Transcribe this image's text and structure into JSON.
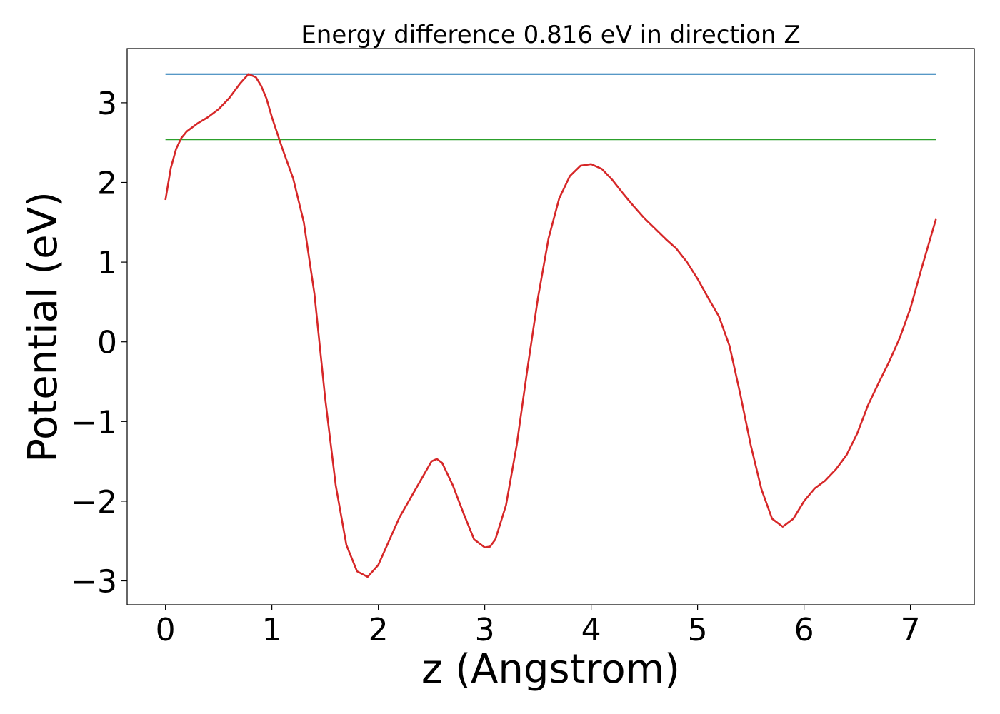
{
  "chart_data": {
    "type": "line",
    "title": "Energy difference 0.816 eV in direction Z",
    "xlabel": "z (Angstrom)",
    "ylabel": "Potential (eV)",
    "xlim": [
      -0.36,
      7.6
    ],
    "ylim": [
      -3.3,
      3.68
    ],
    "xticks": [
      0,
      1,
      2,
      3,
      4,
      5,
      6,
      7
    ],
    "yticks": [
      -3,
      -2,
      -1,
      0,
      1,
      2,
      3
    ],
    "ytick_labels": [
      "−3",
      "−2",
      "−1",
      "0",
      "1",
      "2",
      "3"
    ],
    "grid": false,
    "series": [
      {
        "color": "#1f77b4",
        "x": [
          0,
          7.24
        ],
        "y": [
          3.36,
          3.36
        ]
      },
      {
        "color": "#2ca02c",
        "x": [
          0,
          7.24
        ],
        "y": [
          2.54,
          2.54
        ]
      },
      {
        "color": "#d62728",
        "x": [
          0,
          0.05,
          0.1,
          0.15,
          0.2,
          0.3,
          0.4,
          0.5,
          0.6,
          0.7,
          0.78,
          0.85,
          0.9,
          0.95,
          1.0,
          1.05,
          1.1,
          1.2,
          1.3,
          1.4,
          1.5,
          1.6,
          1.7,
          1.8,
          1.9,
          2.0,
          2.1,
          2.2,
          2.35,
          2.5,
          2.55,
          2.6,
          2.7,
          2.8,
          2.9,
          3.0,
          3.05,
          3.1,
          3.2,
          3.3,
          3.4,
          3.5,
          3.6,
          3.7,
          3.8,
          3.9,
          4.0,
          4.1,
          4.2,
          4.3,
          4.4,
          4.5,
          4.6,
          4.7,
          4.8,
          4.9,
          5.0,
          5.1,
          5.2,
          5.3,
          5.4,
          5.5,
          5.6,
          5.7,
          5.8,
          5.9,
          6.0,
          6.1,
          6.2,
          6.3,
          6.4,
          6.5,
          6.6,
          6.7,
          6.8,
          6.9,
          7.0,
          7.1,
          7.24
        ],
        "y": [
          1.78,
          2.18,
          2.42,
          2.56,
          2.64,
          2.74,
          2.82,
          2.92,
          3.06,
          3.24,
          3.36,
          3.32,
          3.21,
          3.05,
          2.82,
          2.62,
          2.42,
          2.05,
          1.5,
          0.6,
          -0.7,
          -1.8,
          -2.55,
          -2.88,
          -2.95,
          -2.8,
          -2.5,
          -2.2,
          -1.85,
          -1.5,
          -1.47,
          -1.52,
          -1.8,
          -2.15,
          -2.48,
          -2.58,
          -2.57,
          -2.48,
          -2.05,
          -1.3,
          -0.35,
          0.55,
          1.3,
          1.8,
          2.08,
          2.21,
          2.23,
          2.17,
          2.03,
          1.86,
          1.7,
          1.55,
          1.42,
          1.29,
          1.17,
          1.0,
          0.79,
          0.55,
          0.32,
          -0.05,
          -0.65,
          -1.3,
          -1.85,
          -2.22,
          -2.32,
          -2.22,
          -2.0,
          -1.84,
          -1.74,
          -1.6,
          -1.42,
          -1.15,
          -0.8,
          -0.52,
          -0.25,
          0.05,
          0.42,
          0.9,
          1.54
        ]
      }
    ]
  }
}
